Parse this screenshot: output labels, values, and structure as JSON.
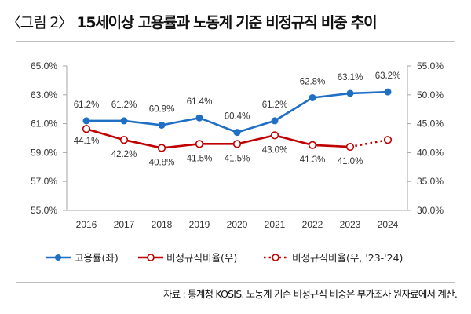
{
  "title": {
    "prefix": "〈그림 2〉",
    "main": "15세이상 고용률과 노동계 기준 비정규직 비중 추이"
  },
  "footer": "자료 : 통계청 KOSIS. 노동계 기준 비정규직 비중은 부가조사 원자료에서 계산.",
  "chart_data": {
    "type": "line",
    "title": "15세이상 고용률과 노동계 기준 비정규직 비중 추이",
    "categories": [
      "2016",
      "2017",
      "2018",
      "2019",
      "2020",
      "2021",
      "2022",
      "2023",
      "2024"
    ],
    "left_axis": {
      "ylim": [
        55.0,
        65.0
      ],
      "ticks": [
        "65.0%",
        "63.0%",
        "61.0%",
        "59.0%",
        "57.0%",
        "55.0%"
      ],
      "tick_values": [
        65,
        63,
        61,
        59,
        57,
        55
      ]
    },
    "right_axis": {
      "ylim": [
        30.0,
        55.0
      ],
      "ticks": [
        "55.0%",
        "50.0%",
        "45.0%",
        "40.0%",
        "35.0%",
        "30.0%"
      ],
      "tick_values": [
        55,
        50,
        45,
        40,
        35,
        30
      ]
    },
    "grid": false,
    "legend_position": "bottom",
    "series": [
      {
        "name": "고용률(좌)",
        "axis": "left",
        "color": "#1f6fc4",
        "marker": "filled-circle",
        "values": [
          61.2,
          61.2,
          60.9,
          61.4,
          60.4,
          61.2,
          62.8,
          63.1,
          63.2
        ],
        "labels": [
          "61.2%",
          "61.2%",
          "60.9%",
          "61.4%",
          "60.4%",
          "61.2%",
          "62.8%",
          "63.1%",
          "63.2%"
        ]
      },
      {
        "name": "비정규직비율(우)",
        "axis": "right",
        "color": "#c00000",
        "marker": "open-circle",
        "values": [
          44.1,
          42.2,
          40.8,
          41.5,
          41.5,
          43.0,
          41.3,
          41.0,
          null
        ],
        "labels": [
          "44.1%",
          "42.2%",
          "40.8%",
          "41.5%",
          "41.5%",
          "43.0%",
          "41.3%",
          "41.0%",
          ""
        ]
      },
      {
        "name": "비정규직비율(우, '23-'24)",
        "axis": "right",
        "color": "#c00000",
        "marker": "open-circle",
        "line_style": "dotted",
        "values": [
          null,
          null,
          null,
          null,
          null,
          null,
          null,
          41.0,
          42.2
        ],
        "labels": [
          "",
          "",
          "",
          "",
          "",
          "",
          "",
          "",
          ""
        ]
      }
    ]
  }
}
